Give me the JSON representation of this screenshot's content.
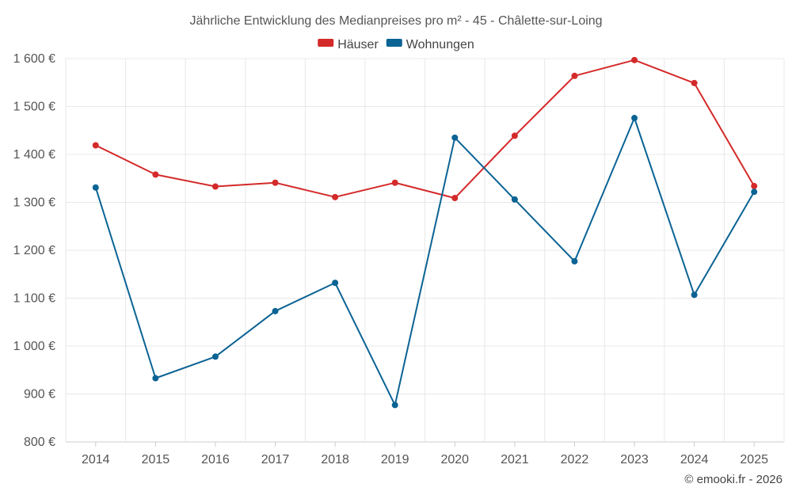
{
  "chart_data": {
    "type": "line",
    "title": "Jährliche Entwicklung des Medianpreises pro m² - 45 - Châlette-sur-Loing",
    "categories": [
      "2014",
      "2015",
      "2016",
      "2017",
      "2018",
      "2019",
      "2020",
      "2021",
      "2022",
      "2023",
      "2024",
      "2025"
    ],
    "series": [
      {
        "name": "Häuser",
        "color": "#d42a2a",
        "values": [
          1419,
          1358,
          1333,
          1341,
          1311,
          1341,
          1309,
          1439,
          1564,
          1597,
          1549,
          1334
        ]
      },
      {
        "name": "Wohnungen",
        "color": "#0b6394",
        "values": [
          1331,
          933,
          978,
          1073,
          1132,
          877,
          1435,
          1306,
          1177,
          1476,
          1107,
          1322
        ]
      }
    ],
    "ylim": [
      800,
      1600
    ],
    "yticks": [
      800,
      900,
      1000,
      1100,
      1200,
      1300,
      1400,
      1500,
      1600
    ],
    "ytick_labels": [
      "800 €",
      "900 €",
      "1 000 €",
      "1 100 €",
      "1 200 €",
      "1 300 €",
      "1 400 €",
      "1 500 €",
      "1 600 €"
    ],
    "xlabel": "",
    "ylabel": "",
    "grid": true,
    "legend": "top-center"
  },
  "credit": "© emooki.fr - 2026"
}
